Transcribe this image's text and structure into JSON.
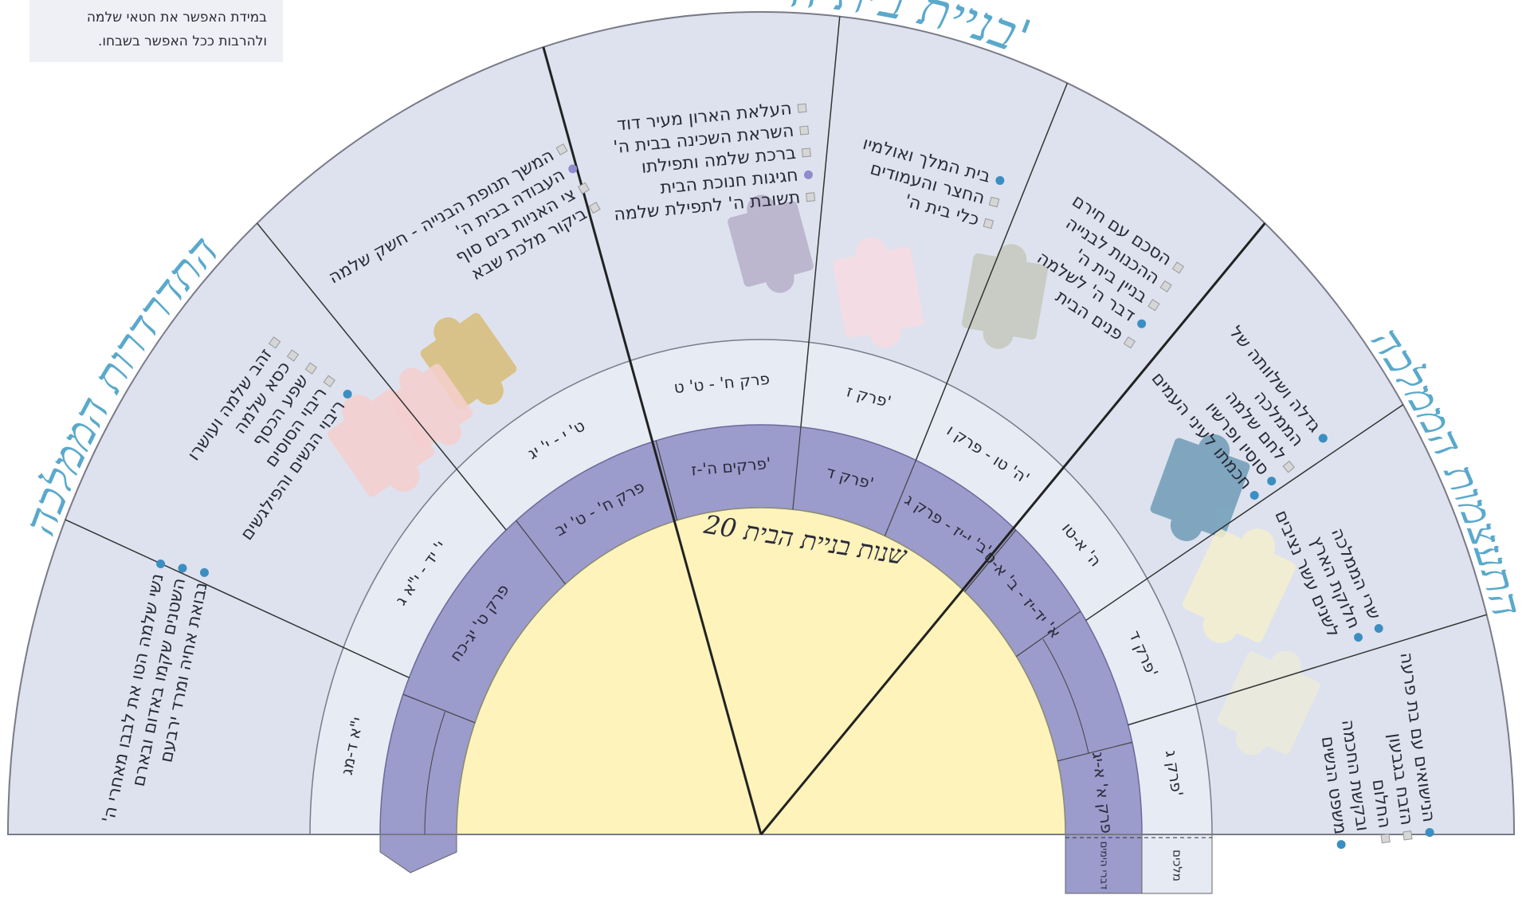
{
  "note": [
    "במידת האפשר את חטאי שלמה",
    "ולהרבות ככל האפשר בשבחו."
  ],
  "arc_titles": {
    "left": "התדרדרות הממלכה",
    "top": "בניית בית ה'",
    "right": "התעצמות הממלכה"
  },
  "center_label": "20 שנות בניית הבית",
  "sources": {
    "chronicles": "דברי הימים",
    "kings": "מלכים"
  },
  "sections": [
    {
      "kings": "פרק ג'",
      "items": [
        {
          "lines": [
            "הנישואים עם בת פרעה"
          ],
          "marker": "dot"
        },
        {
          "lines": [
            "הזבח בגבעון"
          ],
          "marker": "square"
        },
        {
          "lines": [
            "החלום",
            "ובקשת החכמה"
          ],
          "marker": "square"
        },
        {
          "lines": [
            "משפט הנשים"
          ],
          "marker": "dot"
        }
      ]
    },
    {
      "kings": "פרק ד'",
      "items": [
        {
          "lines": [
            "שרי הממלכה"
          ],
          "marker": "dot"
        },
        {
          "lines": [
            "חלוקת הארץ",
            "לשנים עשר נציבים"
          ],
          "marker": "dot"
        }
      ]
    },
    {
      "kings": "ה' א-טו",
      "items": [
        {
          "lines": [
            "גדלה ושלוותה של",
            "הממלכה"
          ],
          "marker": "dot"
        },
        {
          "lines": [
            "לחם שלמה"
          ],
          "marker": "square"
        },
        {
          "lines": [
            "סוסיו ופרשיו"
          ],
          "marker": "dot"
        },
        {
          "lines": [
            "חכמתו לעיני העמים"
          ],
          "marker": "dot"
        }
      ]
    },
    {
      "kings": "ה' טו - פרק ו'",
      "items": [
        {
          "lines": [
            "הסכם עם חירם"
          ],
          "marker": "square"
        },
        {
          "lines": [
            "ההכנות לבנייה"
          ],
          "marker": "square"
        },
        {
          "lines": [
            "בניין בית ה'"
          ],
          "marker": "square"
        },
        {
          "lines": [
            "דבר ה' לשלמה"
          ],
          "marker": "dot"
        },
        {
          "lines": [
            "פנים הבית"
          ],
          "marker": "square"
        }
      ]
    },
    {
      "kings": "פרק ז'",
      "items": [
        {
          "lines": [
            "בית המלך ואולמיו"
          ],
          "marker": "dot"
        },
        {
          "lines": [
            "החצר והעמודים"
          ],
          "marker": "square"
        },
        {
          "lines": [
            "כלי בית ה'"
          ],
          "marker": "square"
        }
      ]
    },
    {
      "kings": "פרק ח' - ט' ט",
      "items": [
        {
          "lines": [
            "העלאת הארון מעיר דוד"
          ],
          "marker": "square"
        },
        {
          "lines": [
            "השראת השכינה בבית ה'"
          ],
          "marker": "square"
        },
        {
          "lines": [
            "ברכת שלמה ותפילתו"
          ],
          "marker": "square"
        },
        {
          "lines": [
            "חגיגות חנוכת הבית"
          ],
          "marker": "violet-dot"
        },
        {
          "lines": [
            "תשובת ה' לתפילת שלמה"
          ],
          "marker": "square"
        }
      ]
    },
    {
      "kings": "ט' י - י' יג",
      "items": [
        {
          "lines": [
            "המשך תנופת הבנייה - חשק שלמה"
          ],
          "marker": "square"
        },
        {
          "lines": [
            "העבודה בבית ה'"
          ],
          "marker": "violet-dot"
        },
        {
          "lines": [
            "צי האניות בים סוף"
          ],
          "marker": "square"
        },
        {
          "lines": [
            "ביקור מלכת שבא"
          ],
          "marker": "square"
        }
      ]
    },
    {
      "kings": "י' יד - י\"א ג",
      "items": [
        {
          "lines": [
            "זהב שלמה ועושרו"
          ],
          "marker": "square"
        },
        {
          "lines": [
            "כסא שלמה"
          ],
          "marker": "square"
        },
        {
          "lines": [
            "שפע הכסף"
          ],
          "marker": "square"
        },
        {
          "lines": [
            "ריבוי הסוסים"
          ],
          "marker": "square"
        },
        {
          "lines": [
            "ריבוי הנשים והפילגשים"
          ],
          "marker": "dot"
        }
      ]
    },
    {
      "kings": "י\"א ד-מג",
      "items": [
        {
          "lines": [
            "נשי שלמה הטו את לבבו מאחרי ה'"
          ],
          "marker": "dot"
        },
        {
          "lines": [
            "השטנים שקמו באדום ובארם"
          ],
          "marker": "dot"
        },
        {
          "lines": [
            "נבואת אחיה ומרד ירבעם"
          ],
          "marker": "dot"
        }
      ]
    }
  ],
  "chronicles": [
    "פרק א' א-יג",
    null,
    "א' יד-יז - ב' א-ט",
    "ב' י-יז - פרק ג'",
    "פרק ד'",
    "פרקים ה'-ז'",
    "פרק ח' - ט' יב",
    "פרק ט' יג-כח",
    null
  ]
}
